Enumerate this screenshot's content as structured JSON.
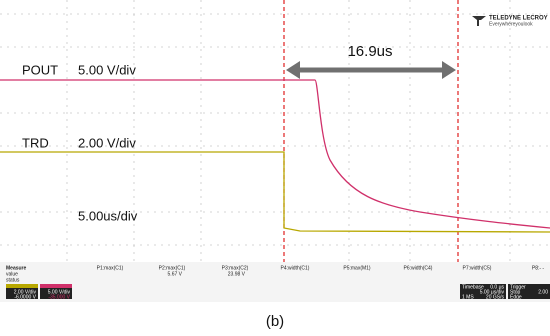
{
  "brand": {
    "name": "TELEDYNE LECROY",
    "tagline": "Everywhereyoulook"
  },
  "annotation": "16.9us",
  "channels": [
    {
      "name": "POUT",
      "scale": "5.00 V/div"
    },
    {
      "name": "TRD",
      "scale": "2.00 V/div"
    }
  ],
  "timebase_label": "5.00us/div",
  "measure": {
    "title": "Measure",
    "rows": [
      "value",
      "status"
    ],
    "params": [
      {
        "name": "P1:max(C1)",
        "value": null
      },
      {
        "name": "P2:max(C1)",
        "value": "5.67 V"
      },
      {
        "name": "P3:max(C2)",
        "value": "23.98 V"
      },
      {
        "name": "P4:width(C1)",
        "value": null
      },
      {
        "name": "P5:max(M1)",
        "value": null
      },
      {
        "name": "P6:width(C4)",
        "value": null
      },
      {
        "name": "P7:width(C5)",
        "value": null
      },
      {
        "name": "P8:- -",
        "value": null
      }
    ]
  },
  "channel_boxes": [
    {
      "scale": "2.00 V/div",
      "offset": "-6.0000 V"
    },
    {
      "scale": "5.00 V/div",
      "offset": "-35.000 V"
    }
  ],
  "timebase_box": {
    "title": "Timebase",
    "delay": "0.0 μs",
    "scale": "5.00 μs/div",
    "samples": "1 MS",
    "rate": "20 GS/s"
  },
  "trigger_box": {
    "title": "Trigger",
    "mode": "Stop",
    "type": "Edge",
    "level": "2.00"
  },
  "caption": "(b)"
}
